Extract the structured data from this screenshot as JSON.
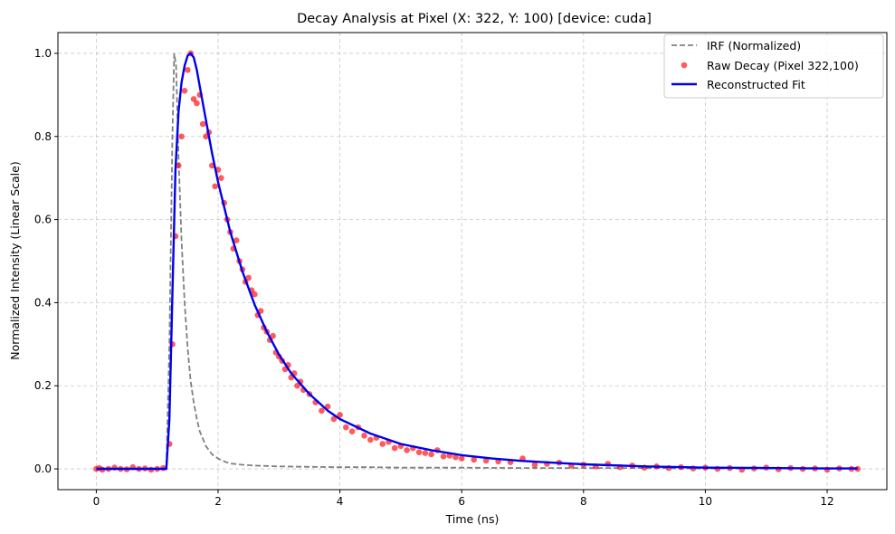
{
  "chart_data": {
    "type": "line",
    "title": "Decay Analysis at Pixel (X: 322, Y: 100)  [device: cuda]",
    "xlabel": "Time (ns)",
    "ylabel": "Normalized Intensity (Linear Scale)",
    "xlim": [
      -0.63,
      12.98
    ],
    "ylim": [
      -0.05,
      1.05
    ],
    "xticks": [
      0,
      2,
      4,
      6,
      8,
      10,
      12
    ],
    "yticks": [
      0.0,
      0.2,
      0.4,
      0.6,
      0.8,
      1.0
    ],
    "xtick_labels": [
      "0",
      "2",
      "4",
      "6",
      "8",
      "10",
      "12"
    ],
    "ytick_labels": [
      "0.0",
      "0.2",
      "0.4",
      "0.6",
      "0.8",
      "1.0"
    ],
    "grid": true,
    "legend_position": "top-right",
    "series": [
      {
        "name": "IRF (Normalized)",
        "style": "dashed-line",
        "color": "#808080",
        "x": [
          0,
          1.15,
          1.2,
          1.25,
          1.28,
          1.31,
          1.35,
          1.4,
          1.45,
          1.5,
          1.55,
          1.6,
          1.65,
          1.7,
          1.8,
          1.9,
          2.0,
          2.1,
          2.2,
          2.4,
          2.6,
          2.8,
          3.0,
          3.5,
          4.0,
          4.5,
          5.0,
          6.0,
          7.0,
          8.0,
          9.0,
          10.0,
          11.0,
          12.5
        ],
        "y": [
          0,
          0,
          0.3,
          0.8,
          1.0,
          0.97,
          0.75,
          0.55,
          0.4,
          0.29,
          0.21,
          0.16,
          0.12,
          0.09,
          0.055,
          0.035,
          0.025,
          0.018,
          0.013,
          0.01,
          0.008,
          0.007,
          0.006,
          0.005,
          0.004,
          0.004,
          0.003,
          0.003,
          0.002,
          0.002,
          0.002,
          0.001,
          0.001,
          0.001
        ]
      },
      {
        "name": "Raw Decay (Pixel 322,100)",
        "style": "markers",
        "color": "#ff0000",
        "x": [
          0.0,
          0.05,
          0.1,
          0.2,
          0.3,
          0.4,
          0.5,
          0.6,
          0.7,
          0.8,
          0.9,
          1.0,
          1.1,
          1.2,
          1.25,
          1.3,
          1.35,
          1.4,
          1.45,
          1.5,
          1.55,
          1.6,
          1.65,
          1.7,
          1.75,
          1.8,
          1.85,
          1.9,
          1.95,
          2.0,
          2.05,
          2.1,
          2.15,
          2.2,
          2.25,
          2.3,
          2.35,
          2.4,
          2.45,
          2.5,
          2.55,
          2.6,
          2.65,
          2.7,
          2.75,
          2.8,
          2.85,
          2.9,
          2.95,
          3.0,
          3.05,
          3.1,
          3.15,
          3.2,
          3.25,
          3.3,
          3.35,
          3.4,
          3.5,
          3.6,
          3.7,
          3.8,
          3.9,
          4.0,
          4.1,
          4.2,
          4.3,
          4.4,
          4.5,
          4.6,
          4.7,
          4.8,
          4.9,
          5.0,
          5.1,
          5.2,
          5.3,
          5.4,
          5.5,
          5.6,
          5.7,
          5.8,
          5.9,
          6.0,
          6.2,
          6.4,
          6.6,
          6.8,
          7.0,
          7.2,
          7.4,
          7.6,
          7.8,
          8.0,
          8.2,
          8.4,
          8.6,
          8.8,
          9.0,
          9.2,
          9.4,
          9.6,
          9.8,
          10.0,
          10.2,
          10.4,
          10.6,
          10.8,
          11.0,
          11.2,
          11.4,
          11.6,
          11.8,
          12.0,
          12.2,
          12.4,
          12.5
        ],
        "y": [
          0.0,
          0.002,
          -0.002,
          0.0,
          0.003,
          0.0,
          -0.001,
          0.004,
          0.0,
          0.001,
          -0.002,
          0.0,
          0.002,
          0.06,
          0.3,
          0.56,
          0.73,
          0.8,
          0.91,
          0.96,
          1.0,
          0.89,
          0.88,
          0.9,
          0.83,
          0.8,
          0.81,
          0.73,
          0.68,
          0.72,
          0.7,
          0.64,
          0.6,
          0.57,
          0.53,
          0.55,
          0.5,
          0.48,
          0.45,
          0.46,
          0.43,
          0.42,
          0.37,
          0.38,
          0.34,
          0.33,
          0.31,
          0.32,
          0.28,
          0.27,
          0.26,
          0.24,
          0.25,
          0.22,
          0.23,
          0.2,
          0.21,
          0.19,
          0.18,
          0.16,
          0.14,
          0.15,
          0.12,
          0.13,
          0.1,
          0.09,
          0.1,
          0.08,
          0.07,
          0.075,
          0.06,
          0.065,
          0.05,
          0.055,
          0.045,
          0.05,
          0.04,
          0.038,
          0.035,
          0.045,
          0.03,
          0.032,
          0.028,
          0.025,
          0.022,
          0.02,
          0.018,
          0.016,
          0.025,
          0.01,
          0.012,
          0.015,
          0.008,
          0.01,
          0.006,
          0.012,
          0.004,
          0.008,
          0.003,
          0.006,
          0.002,
          0.004,
          0.001,
          0.003,
          0.0,
          0.002,
          -0.002,
          0.001,
          0.003,
          -0.001,
          0.002,
          0.0,
          0.001,
          -0.002,
          0.001,
          0.0,
          0.0
        ]
      },
      {
        "name": "Reconstructed Fit",
        "style": "solid-line",
        "color": "#0000ee",
        "x": [
          0,
          1.15,
          1.2,
          1.25,
          1.3,
          1.35,
          1.4,
          1.45,
          1.5,
          1.55,
          1.6,
          1.65,
          1.7,
          1.8,
          1.9,
          2.0,
          2.2,
          2.4,
          2.6,
          2.8,
          3.0,
          3.2,
          3.5,
          3.8,
          4.0,
          4.5,
          5.0,
          5.5,
          6.0,
          6.5,
          7.0,
          8.0,
          9.0,
          10.0,
          11.0,
          12.0,
          12.5
        ],
        "y": [
          0,
          0,
          0.12,
          0.42,
          0.72,
          0.86,
          0.93,
          0.97,
          0.995,
          1.0,
          0.99,
          0.96,
          0.92,
          0.84,
          0.76,
          0.69,
          0.57,
          0.475,
          0.395,
          0.33,
          0.275,
          0.23,
          0.18,
          0.14,
          0.12,
          0.085,
          0.06,
          0.045,
          0.033,
          0.025,
          0.019,
          0.011,
          0.006,
          0.003,
          0.002,
          0.001,
          0.001
        ]
      }
    ]
  }
}
